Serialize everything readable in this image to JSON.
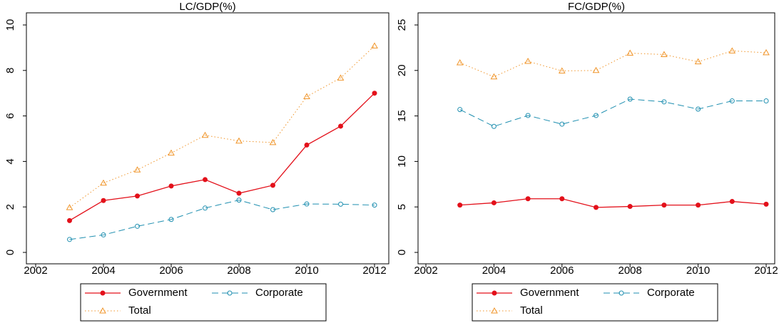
{
  "chart_data": [
    {
      "type": "line",
      "title": "LC/GDP(%)",
      "x": [
        2003,
        2004,
        2005,
        2006,
        2007,
        2008,
        2009,
        2010,
        2011,
        2012
      ],
      "xlim": [
        2002,
        2012
      ],
      "xticks": [
        2002,
        2004,
        2006,
        2008,
        2010,
        2012
      ],
      "ylim": [
        0,
        10
      ],
      "yticks": [
        0,
        2,
        4,
        6,
        8,
        10
      ],
      "series": [
        {
          "name": "Government",
          "color": "#e3101a",
          "values": [
            1.4,
            2.28,
            2.48,
            2.92,
            3.2,
            2.6,
            2.95,
            4.72,
            5.55,
            7.0
          ]
        },
        {
          "name": "Corporate",
          "color": "#1f8fb0",
          "values": [
            0.57,
            0.77,
            1.15,
            1.45,
            1.95,
            2.3,
            1.88,
            2.13,
            2.12,
            2.08
          ]
        },
        {
          "name": "Total",
          "color": "#f0952a",
          "values": [
            1.97,
            3.05,
            3.63,
            4.37,
            5.15,
            4.9,
            4.83,
            6.85,
            7.67,
            9.08
          ]
        }
      ]
    },
    {
      "type": "line",
      "title": "FC/GDP(%)",
      "x": [
        2003,
        2004,
        2005,
        2006,
        2007,
        2008,
        2009,
        2010,
        2011,
        2012
      ],
      "xlim": [
        2002,
        2012
      ],
      "xticks": [
        2002,
        2004,
        2006,
        2008,
        2010,
        2012
      ],
      "ylim": [
        0,
        25
      ],
      "yticks": [
        0,
        5,
        10,
        15,
        20,
        25
      ],
      "series": [
        {
          "name": "Government",
          "color": "#e3101a",
          "values": [
            5.2,
            5.45,
            5.9,
            5.9,
            4.95,
            5.05,
            5.2,
            5.2,
            5.6,
            5.3
          ]
        },
        {
          "name": "Corporate",
          "color": "#1f8fb0",
          "values": [
            15.7,
            13.85,
            15.05,
            14.1,
            15.05,
            16.85,
            16.55,
            15.75,
            16.65,
            16.65
          ]
        },
        {
          "name": "Total",
          "color": "#f0952a",
          "values": [
            20.85,
            19.3,
            21.0,
            19.95,
            20.0,
            21.9,
            21.75,
            20.95,
            22.15,
            21.95
          ]
        }
      ]
    }
  ]
}
